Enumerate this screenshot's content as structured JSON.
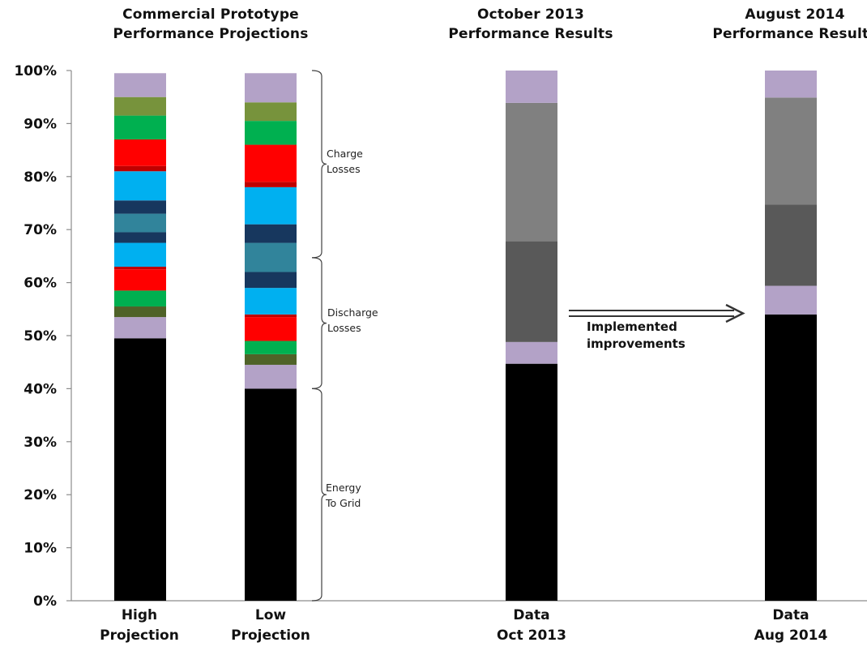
{
  "headers": [
    {
      "lines": [
        "Commercial Prototype",
        "Performance Projections"
      ]
    },
    {
      "lines": [
        "October 2013",
        "Performance Results"
      ]
    },
    {
      "lines": [
        "August 2014",
        "Performance Results"
      ]
    }
  ],
  "annotations": {
    "charge_losses": [
      "Charge",
      "Losses"
    ],
    "discharge_losses": [
      "Discharge",
      "Losses"
    ],
    "energy_to_grid": [
      "Energy",
      "To Grid"
    ],
    "arrow_label": [
      "Implemented",
      "improvements"
    ]
  },
  "chart_data": {
    "type": "bar",
    "stacked": true,
    "title": "",
    "xlabel": "",
    "ylabel": "",
    "ylim": [
      0,
      100
    ],
    "yticks": [
      "0%",
      "10%",
      "20%",
      "30%",
      "40%",
      "50%",
      "60%",
      "70%",
      "80%",
      "90%",
      "100%"
    ],
    "grid": false,
    "legend": "none",
    "categories": [
      {
        "lines": [
          "High",
          "Projection"
        ]
      },
      {
        "lines": [
          "Low",
          "Projection"
        ]
      },
      {
        "lines": [
          "Data",
          "Oct 2013"
        ]
      },
      {
        "lines": [
          "Data",
          "Aug 2014"
        ]
      }
    ],
    "bars": [
      {
        "segments": [
          {
            "value": 49.5,
            "color": "#000000"
          },
          {
            "value": 4.0,
            "color": "#b3a2c7"
          },
          {
            "value": 2.0,
            "color": "#4f6228"
          },
          {
            "value": 3.0,
            "color": "#00b050"
          },
          {
            "value": 4.0,
            "color": "#ff0000"
          },
          {
            "value": 0.5,
            "color": "#c00000"
          },
          {
            "value": 4.5,
            "color": "#00b0f0"
          },
          {
            "value": 2.0,
            "color": "#17375e"
          },
          {
            "value": 3.5,
            "color": "#31849b"
          },
          {
            "value": 2.5,
            "color": "#17375e"
          },
          {
            "value": 5.5,
            "color": "#00b0f0"
          },
          {
            "value": 1.0,
            "color": "#c00000"
          },
          {
            "value": 5.0,
            "color": "#ff0000"
          },
          {
            "value": 4.5,
            "color": "#00b050"
          },
          {
            "value": 3.5,
            "color": "#77933c"
          },
          {
            "value": 4.5,
            "color": "#b3a2c7"
          }
        ]
      },
      {
        "segments": [
          {
            "value": 40.0,
            "color": "#000000"
          },
          {
            "value": 4.5,
            "color": "#b3a2c7"
          },
          {
            "value": 2.0,
            "color": "#4f6228"
          },
          {
            "value": 2.5,
            "color": "#00b050"
          },
          {
            "value": 4.5,
            "color": "#ff0000"
          },
          {
            "value": 0.5,
            "color": "#c00000"
          },
          {
            "value": 5.0,
            "color": "#00b0f0"
          },
          {
            "value": 3.0,
            "color": "#17375e"
          },
          {
            "value": 5.5,
            "color": "#31849b"
          },
          {
            "value": 3.5,
            "color": "#17375e"
          },
          {
            "value": 7.0,
            "color": "#00b0f0"
          },
          {
            "value": 1.0,
            "color": "#c00000"
          },
          {
            "value": 7.0,
            "color": "#ff0000"
          },
          {
            "value": 4.5,
            "color": "#00b050"
          },
          {
            "value": 3.5,
            "color": "#77933c"
          },
          {
            "value": 5.5,
            "color": "#b3a2c7"
          }
        ]
      },
      {
        "segments": [
          {
            "value": 44.7,
            "color": "#000000"
          },
          {
            "value": 4.1,
            "color": "#b3a2c7"
          },
          {
            "value": 19.0,
            "color": "#595959"
          },
          {
            "value": 26.1,
            "color": "#808080"
          },
          {
            "value": 6.1,
            "color": "#b3a2c7"
          }
        ]
      },
      {
        "segments": [
          {
            "value": 54.0,
            "color": "#000000"
          },
          {
            "value": 5.4,
            "color": "#b3a2c7"
          },
          {
            "value": 15.3,
            "color": "#595959"
          },
          {
            "value": 20.2,
            "color": "#808080"
          },
          {
            "value": 5.1,
            "color": "#b3a2c7"
          }
        ]
      }
    ]
  }
}
